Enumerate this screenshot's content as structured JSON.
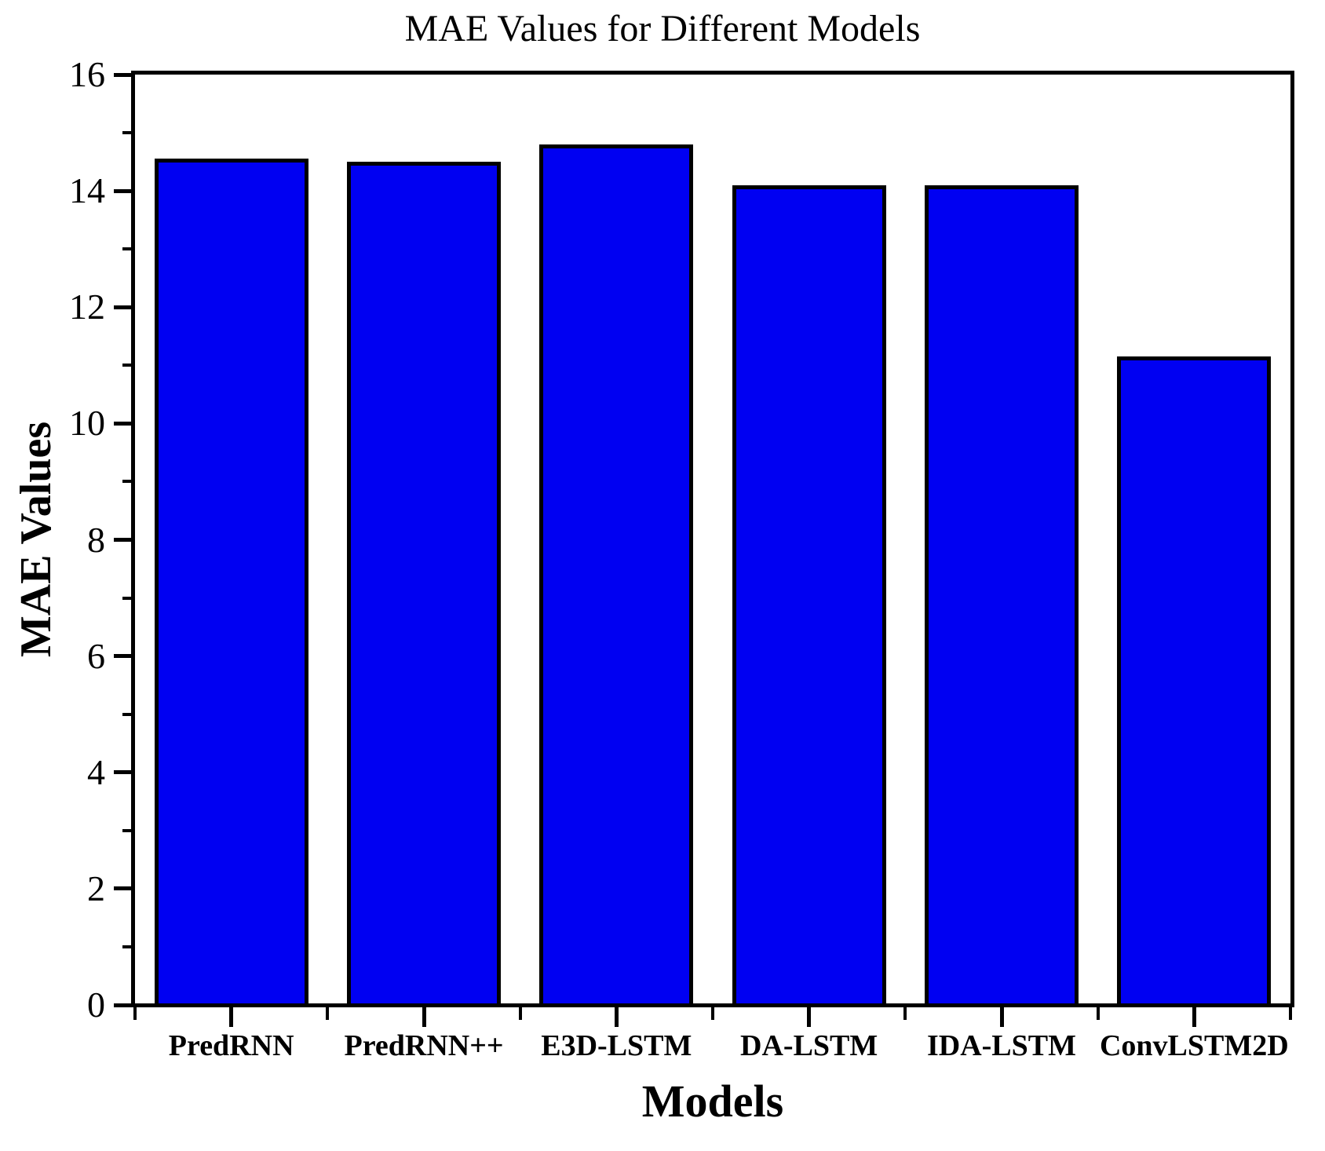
{
  "chart_data": {
    "type": "bar",
    "title": "MAE Values for Different Models",
    "xlabel": "Models",
    "ylabel": "MAE Values",
    "categories": [
      "PredRNN",
      "PredRNN++",
      "E3D-LSTM",
      "DA-LSTM",
      "IDA-LSTM",
      "ConvLSTM2D"
    ],
    "values": [
      14.55,
      14.5,
      14.8,
      14.1,
      14.1,
      11.15
    ],
    "ylim": [
      0,
      16
    ],
    "yticks": [
      {
        "value": 0,
        "label": "0"
      },
      {
        "value": 2,
        "label": "2"
      },
      {
        "value": 4,
        "label": "4"
      },
      {
        "value": 6,
        "label": "6"
      },
      {
        "value": 8,
        "label": "8"
      },
      {
        "value": 10,
        "label": "10"
      },
      {
        "value": 12,
        "label": "12"
      },
      {
        "value": 14,
        "label": "14"
      },
      {
        "value": 16,
        "label": "16"
      }
    ],
    "ytick_minor": [
      1,
      3,
      5,
      7,
      9,
      11,
      13,
      15
    ],
    "grid": false,
    "legend_position": "none",
    "bar_width_fraction": 0.8,
    "colors": {
      "bar_fill": "#0000f2",
      "bar_edge": "#000000",
      "axis": "#000000",
      "text": "#000000",
      "background": "#ffffff"
    }
  }
}
